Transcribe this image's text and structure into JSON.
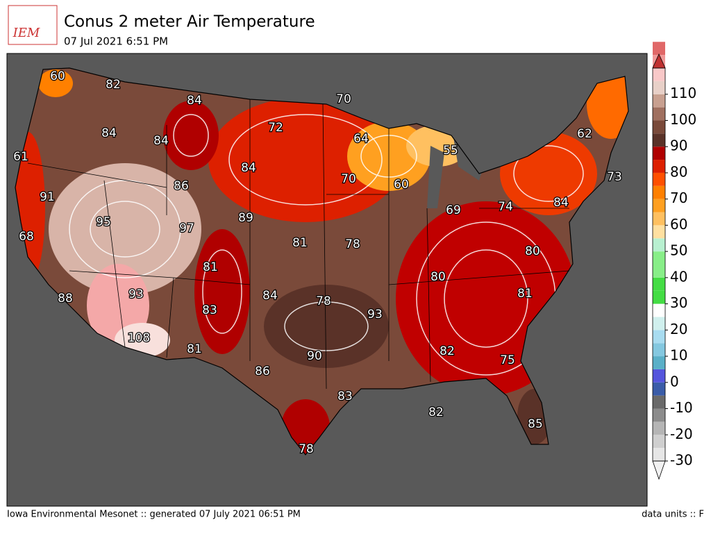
{
  "header": {
    "logo": "IEM",
    "title": "Conus 2 meter Air Temperature",
    "subtitle": "07 Jul 2021 6:51 PM"
  },
  "map": {
    "labels": [
      "60",
      "82",
      "84",
      "70",
      "72",
      "84",
      "84",
      "64",
      "55",
      "62",
      "61",
      "84",
      "70",
      "60",
      "73",
      "86",
      "91",
      "74",
      "84",
      "69",
      "89",
      "95",
      "97",
      "68",
      "81",
      "78",
      "80",
      "81",
      "80",
      "93",
      "84",
      "78",
      "81",
      "88",
      "83",
      "93",
      "108",
      "81",
      "90",
      "82",
      "75",
      "86",
      "83",
      "82",
      "85",
      "78"
    ]
  },
  "colorbar": {
    "ticks": [
      -30,
      -20,
      -10,
      0,
      10,
      20,
      30,
      40,
      50,
      60,
      70,
      80,
      90,
      100,
      110
    ],
    "min": -30,
    "max": 120,
    "step": 5,
    "colors": [
      "#e6e6e6",
      "#cfcfcf",
      "#b5b5b5",
      "#8c8c8c",
      "#6a6a6a",
      "#3a5ca8",
      "#5555dd",
      "#5ab0c8",
      "#84c8e0",
      "#a8dcf0",
      "#d0f0ee",
      "#ffffff",
      "#44dd44",
      "#44dd44",
      "#88ee88",
      "#88ee88",
      "#b8f0d0",
      "#ffe0a0",
      "#ffc060",
      "#ffa020",
      "#ff8000",
      "#ff5000",
      "#dd2000",
      "#b00000",
      "#5a3228",
      "#7a4a3a",
      "#a07060",
      "#c8a090",
      "#e8d0c8",
      "#f8c8c8",
      "#f09898",
      "#e06868"
    ],
    "under": "#f2f2f2",
    "over": "#c03030"
  },
  "footer": {
    "left": "Iowa Environmental Mesonet :: generated 07 July 2021 06:51 PM",
    "right": "data units :: F"
  }
}
